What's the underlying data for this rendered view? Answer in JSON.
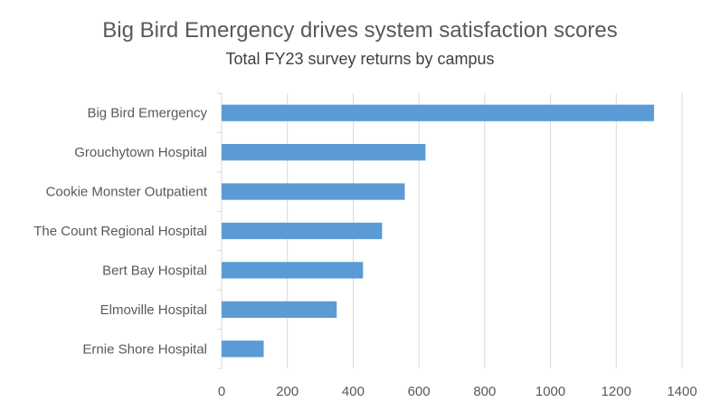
{
  "chart_data": {
    "type": "bar",
    "orientation": "horizontal",
    "title": "Big Bird Emergency drives system satisfaction scores",
    "subtitle": "Total FY23 survey returns by campus",
    "categories": [
      "Big Bird Emergency",
      "Grouchytown Hospital",
      "Cookie Monster Outpatient",
      "The Count Regional Hospital",
      "Bert Bay Hospital",
      "Elmoville Hospital",
      "Ernie Shore Hospital"
    ],
    "values": [
      1315,
      620,
      557,
      488,
      430,
      350,
      128
    ],
    "xlim": [
      0,
      1400
    ],
    "xticks": [
      0,
      200,
      400,
      600,
      800,
      1000,
      1200,
      1400
    ],
    "xlabel": "",
    "ylabel": "",
    "grid": "vertical",
    "legend": "none",
    "bar_color": "#5b9bd5",
    "grid_color": "#d9d9d9"
  }
}
